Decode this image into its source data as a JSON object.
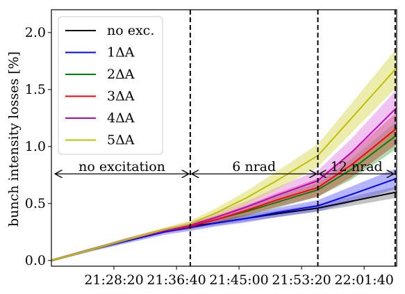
{
  "chart_data": {
    "type": "line",
    "ylabel": "bunch intensity losses [%]",
    "xlabel": "",
    "x_ticks": [
      "21:28:20",
      "21:36:40",
      "21:45:00",
      "21:53:20",
      "22:01:40"
    ],
    "x_tick_minutes": [
      8.33,
      16.67,
      25.0,
      33.33,
      41.67
    ],
    "x_range_minutes": [
      0,
      46
    ],
    "y_ticks": [
      0.0,
      0.5,
      1.0,
      1.5,
      2.0
    ],
    "ylim": [
      -0.05,
      2.2
    ],
    "vlines_minutes": [
      18.5,
      35.5,
      45.8
    ],
    "annotations": [
      {
        "text": "no excitation",
        "from": 0.3,
        "to": 18.5,
        "y": 0.76
      },
      {
        "text": "6 nrad",
        "from": 18.5,
        "to": 35.5,
        "y": 0.76
      },
      {
        "text": "12 nrad",
        "from": 35.5,
        "to": 45.8,
        "y": 0.76
      }
    ],
    "legend_position": "upper-left",
    "series": [
      {
        "name": "no exc.",
        "color": "#000000",
        "band": "#7a7a7a",
        "x": [
          0,
          5,
          10,
          15,
          18.5,
          22,
          26,
          30,
          35.5,
          40,
          46
        ],
        "y": [
          0.0,
          0.09,
          0.18,
          0.26,
          0.3,
          0.33,
          0.37,
          0.41,
          0.46,
          0.52,
          0.6
        ],
        "spread": [
          0.01,
          0.01,
          0.015,
          0.02,
          0.02,
          0.02,
          0.025,
          0.03,
          0.03,
          0.04,
          0.05
        ]
      },
      {
        "name": "1ΔA",
        "color": "#0000ff",
        "band": "#5b5bff",
        "x": [
          0,
          5,
          10,
          15,
          18.5,
          22,
          26,
          30,
          35.5,
          40,
          46
        ],
        "y": [
          0.0,
          0.09,
          0.17,
          0.25,
          0.29,
          0.33,
          0.37,
          0.42,
          0.48,
          0.58,
          0.72
        ],
        "spread": [
          0.01,
          0.015,
          0.02,
          0.025,
          0.03,
          0.03,
          0.035,
          0.04,
          0.05,
          0.07,
          0.09
        ]
      },
      {
        "name": "2ΔA",
        "color": "#008000",
        "band": "#4caf4c",
        "x": [
          0,
          5,
          10,
          15,
          18.5,
          22,
          26,
          30,
          35.5,
          40,
          46
        ],
        "y": [
          0.0,
          0.09,
          0.18,
          0.26,
          0.3,
          0.36,
          0.43,
          0.51,
          0.62,
          0.8,
          1.1
        ],
        "spread": [
          0.01,
          0.01,
          0.015,
          0.02,
          0.025,
          0.03,
          0.04,
          0.05,
          0.06,
          0.09,
          0.12
        ]
      },
      {
        "name": "3ΔA",
        "color": "#ff0000",
        "band": "#c0392b",
        "x": [
          0,
          5,
          10,
          15,
          18.5,
          22,
          26,
          30,
          35.5,
          40,
          46
        ],
        "y": [
          0.0,
          0.09,
          0.18,
          0.26,
          0.3,
          0.36,
          0.44,
          0.53,
          0.64,
          0.84,
          1.16
        ],
        "spread": [
          0.01,
          0.01,
          0.015,
          0.02,
          0.025,
          0.035,
          0.045,
          0.06,
          0.08,
          0.11,
          0.14
        ]
      },
      {
        "name": "4ΔA",
        "color": "#bf00bf",
        "band": "#e07be0",
        "x": [
          0,
          5,
          10,
          15,
          18.5,
          22,
          26,
          30,
          35.5,
          40,
          46
        ],
        "y": [
          0.0,
          0.09,
          0.18,
          0.26,
          0.31,
          0.38,
          0.47,
          0.57,
          0.7,
          0.95,
          1.34
        ],
        "spread": [
          0.01,
          0.01,
          0.015,
          0.02,
          0.03,
          0.04,
          0.05,
          0.07,
          0.09,
          0.12,
          0.16
        ]
      },
      {
        "name": "5ΔA",
        "color": "#bfbf00",
        "band": "#d4d44a",
        "x": [
          0,
          5,
          10,
          15,
          18.5,
          22,
          26,
          30,
          35.5,
          40,
          46
        ],
        "y": [
          0.0,
          0.09,
          0.18,
          0.27,
          0.32,
          0.42,
          0.55,
          0.7,
          0.92,
          1.25,
          1.69
        ],
        "spread": [
          0.01,
          0.01,
          0.015,
          0.02,
          0.03,
          0.04,
          0.06,
          0.08,
          0.1,
          0.13,
          0.17
        ]
      }
    ]
  }
}
